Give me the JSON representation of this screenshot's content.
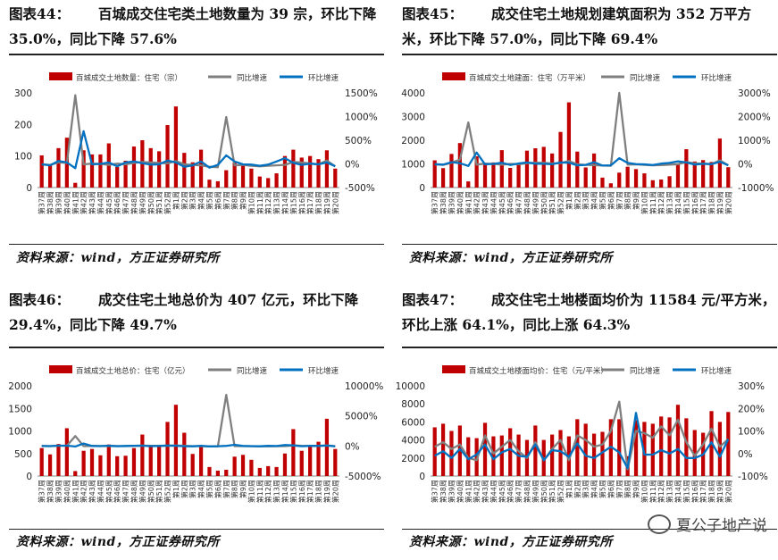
{
  "panels": [
    {
      "label": "图表44：",
      "title": "百城成交住宅类土地数量为 39 宗，环比下降 35.0%，同比下降 57.6%",
      "source": "资料来源：wind，方正证券研究所"
    },
    {
      "label": "图表45：",
      "title": "成交住宅土地规划建筑面积为 352 万平方米，环比下降 57.0%，同比下降 69.4%",
      "source": "资料来源：wind，方正证券研究所"
    },
    {
      "label": "图表46：",
      "title": "成交住宅土地总价为 407 亿元，环比下降 29.4%，同比下降 49.7%",
      "source": "资料来源：wind，方正证券研究所"
    },
    {
      "label": "图表47：",
      "title": "成交住宅土地楼面均价为 11584 元/平方米，环比上涨 64.1%，同比上涨 64.3%",
      "source": "资料来源：wind，方正证券研究所"
    }
  ],
  "watermark": "夏公子地产说",
  "colors": {
    "bar": "#c00000",
    "yoy": "#7f7f7f",
    "mom": "#0070c0"
  },
  "chart_data": [
    {
      "type": "bar",
      "legend": [
        "百城成交土地数量：住宅（宗）",
        "同比增速",
        "环比增速"
      ],
      "categories": [
        "第37周",
        "第38周",
        "第39周",
        "第40周",
        "第41周",
        "第42周",
        "第43周",
        "第44周",
        "第45周",
        "第46周",
        "第47周",
        "第48周",
        "第49周",
        "第50周",
        "第51周",
        "第52周",
        "第1周",
        "第2周",
        "第3周",
        "第4周",
        "第5周",
        "第6周",
        "第7周",
        "第8周",
        "第9周",
        "第10周",
        "第11周",
        "第12周",
        "第13周",
        "第14周",
        "第15周",
        "第16周",
        "第17周",
        "第18周",
        "第19周",
        "第20周"
      ],
      "series": [
        {
          "name": "百城成交土地数量：住宅（宗）",
          "axis": "left",
          "values": [
            102,
            75,
            125,
            158,
            15,
            118,
            105,
            105,
            140,
            65,
            85,
            130,
            150,
            125,
            115,
            198,
            257,
            110,
            80,
            120,
            25,
            20,
            55,
            80,
            70,
            60,
            35,
            30,
            45,
            100,
            120,
            95,
            100,
            90,
            118,
            60
          ]
        },
        {
          "name": "同比增速",
          "axis": "right",
          "values": [
            -10,
            -20,
            30,
            20,
            1450,
            -10,
            5,
            0,
            -20,
            5,
            -10,
            20,
            40,
            30,
            20,
            10,
            60,
            -10,
            -20,
            -30,
            -60,
            -70,
            990,
            -30,
            -20,
            -40,
            -50,
            -40,
            -30,
            -20,
            40,
            30,
            10,
            -10,
            70,
            -50
          ]
        },
        {
          "name": "环比增速",
          "axis": "right",
          "values": [
            -10,
            -30,
            60,
            30,
            -90,
            690,
            -10,
            0,
            30,
            -50,
            30,
            50,
            15,
            -15,
            -10,
            70,
            30,
            -60,
            -30,
            50,
            -80,
            -20,
            180,
            50,
            -10,
            -15,
            -40,
            -15,
            50,
            120,
            20,
            -20,
            5,
            -10,
            30,
            -50
          ]
        }
      ],
      "ylim_left": [
        0,
        300
      ],
      "yticks_left": [
        0,
        100,
        200,
        300
      ],
      "ylim_right": [
        -500,
        1500
      ],
      "yticks_right": [
        "-500%",
        "0%",
        "500%",
        "1000%",
        "1500%"
      ]
    },
    {
      "type": "bar",
      "legend": [
        "百城成交土地建面：住宅（万平米）",
        "同比增速",
        "环比增速"
      ],
      "categories": [
        "第37周",
        "第38周",
        "第39周",
        "第40周",
        "第41周",
        "第42周",
        "第43周",
        "第44周",
        "第45周",
        "第46周",
        "第47周",
        "第48周",
        "第49周",
        "第50周",
        "第51周",
        "第52周",
        "第1周",
        "第2周",
        "第3周",
        "第4周",
        "第5周",
        "第6周",
        "第7周",
        "第8周",
        "第9周",
        "第10周",
        "第11周",
        "第12周",
        "第13周",
        "第14周",
        "第15周",
        "第16周",
        "第17周",
        "第18周",
        "第19周",
        "第20周"
      ],
      "series": [
        {
          "name": "百城成交土地建面：住宅（万平米）",
          "axis": "left",
          "values": [
            1150,
            820,
            1420,
            1880,
            260,
            1320,
            1020,
            1060,
            1580,
            830,
            990,
            1560,
            1660,
            1720,
            1440,
            2350,
            3600,
            1520,
            850,
            1440,
            420,
            180,
            630,
            880,
            780,
            600,
            310,
            340,
            480,
            1020,
            1620,
            1100,
            1160,
            1080,
            2070,
            860
          ]
        },
        {
          "name": "同比增速",
          "axis": "right",
          "values": [
            -20,
            -40,
            50,
            180,
            1750,
            -30,
            10,
            0,
            -30,
            0,
            -10,
            30,
            50,
            40,
            20,
            30,
            120,
            -20,
            -40,
            -50,
            -70,
            -80,
            3000,
            -30,
            -20,
            -40,
            -60,
            -50,
            -30,
            -10,
            80,
            20,
            10,
            -10,
            150,
            -60
          ]
        },
        {
          "name": "环比增速",
          "axis": "right",
          "values": [
            -10,
            -30,
            70,
            30,
            -85,
            480,
            -20,
            0,
            50,
            -45,
            20,
            60,
            5,
            5,
            -15,
            60,
            50,
            -60,
            -40,
            70,
            -70,
            -60,
            240,
            40,
            -10,
            -20,
            -50,
            10,
            40,
            110,
            60,
            -30,
            5,
            -10,
            90,
            -60
          ]
        }
      ],
      "ylim_left": [
        0,
        4000
      ],
      "yticks_left": [
        0,
        1000,
        2000,
        3000,
        4000
      ],
      "ylim_right": [
        -1000,
        3000
      ],
      "yticks_right": [
        "-1000%",
        "0%",
        "1000%",
        "2000%",
        "3000%"
      ]
    },
    {
      "type": "bar",
      "legend": [
        "百城成交土地总价：住宅（亿元）",
        "同比增速",
        "环比增速"
      ],
      "categories": [
        "第37周",
        "第38周",
        "第39周",
        "第40周",
        "第41周",
        "第42周",
        "第43周",
        "第44周",
        "第45周",
        "第46周",
        "第47周",
        "第48周",
        "第49周",
        "第50周",
        "第51周",
        "第52周",
        "第1周",
        "第2周",
        "第3周",
        "第4周",
        "第5周",
        "第6周",
        "第7周",
        "第8周",
        "第9周",
        "第10周",
        "第11周",
        "第12周",
        "第13周",
        "第14周",
        "第15周",
        "第16周",
        "第17周",
        "第18周",
        "第19周",
        "第20周"
      ],
      "series": [
        {
          "name": "百城成交土地总价：住宅（亿元）",
          "axis": "left",
          "values": [
            620,
            480,
            710,
            1060,
            110,
            560,
            600,
            460,
            700,
            440,
            450,
            620,
            920,
            680,
            660,
            1200,
            1580,
            960,
            490,
            680,
            200,
            120,
            140,
            430,
            470,
            360,
            180,
            220,
            200,
            500,
            1040,
            560,
            650,
            760,
            1270,
            600
          ]
        },
        {
          "name": "同比增速",
          "axis": "right",
          "values": [
            0,
            -20,
            30,
            50,
            1650,
            -20,
            10,
            -10,
            -20,
            -10,
            -20,
            20,
            60,
            30,
            20,
            40,
            80,
            20,
            -30,
            -40,
            -60,
            -80,
            8500,
            -30,
            -20,
            -40,
            -60,
            -50,
            -40,
            -20,
            100,
            20,
            10,
            -10,
            110,
            -50
          ]
        },
        {
          "name": "环比增速",
          "axis": "right",
          "values": [
            -10,
            -20,
            50,
            50,
            -90,
            410,
            10,
            -25,
            50,
            -40,
            0,
            40,
            50,
            -30,
            0,
            80,
            30,
            -40,
            -50,
            40,
            -70,
            -40,
            20,
            200,
            10,
            -25,
            -50,
            20,
            -10,
            150,
            100,
            -45,
            15,
            20,
            70,
            -50
          ]
        }
      ],
      "ylim_left": [
        0,
        2000
      ],
      "yticks_left": [
        0,
        500,
        1000,
        1500,
        2000
      ],
      "ylim_right": [
        -5000,
        10000
      ],
      "yticks_right": [
        "-5000%",
        "0%",
        "5000%",
        "10000%"
      ]
    },
    {
      "type": "bar",
      "legend": [
        "百城成交土地楼面均价：住宅（元/平米）",
        "同比增速",
        "环比增速"
      ],
      "categories": [
        "第37周",
        "第38周",
        "第39周",
        "第40周",
        "第41周",
        "第42周",
        "第43周",
        "第44周",
        "第45周",
        "第46周",
        "第47周",
        "第48周",
        "第49周",
        "第50周",
        "第51周",
        "第52周",
        "第1周",
        "第2周",
        "第3周",
        "第4周",
        "第5周",
        "第6周",
        "第7周",
        "第8周",
        "第9周",
        "第10周",
        "第11周",
        "第12周",
        "第13周",
        "第14周",
        "第15周",
        "第16周",
        "第17周",
        "第18周",
        "第19周",
        "第20周"
      ],
      "series": [
        {
          "name": "百城成交土地楼面均价：住宅（元/平米）",
          "axis": "left",
          "values": [
            5400,
            5800,
            5000,
            5600,
            4300,
            4200,
            5900,
            4400,
            4500,
            5300,
            4600,
            4000,
            5600,
            4000,
            4600,
            5100,
            4400,
            6300,
            5800,
            4700,
            4900,
            6300,
            6300,
            2200,
            6200,
            6000,
            5800,
            6600,
            6500,
            7900,
            6400,
            5100,
            4800,
            7200,
            6000,
            7100
          ]
        },
        {
          "name": "同比增速",
          "axis": "right",
          "values": [
            30,
            50,
            20,
            40,
            -20,
            -30,
            80,
            0,
            30,
            60,
            10,
            -20,
            50,
            -30,
            20,
            60,
            -30,
            80,
            60,
            30,
            40,
            100,
            230,
            -70,
            100,
            90,
            70,
            120,
            80,
            150,
            50,
            -10,
            40,
            110,
            30,
            64
          ]
        },
        {
          "name": "环比增速",
          "axis": "right",
          "values": [
            -10,
            10,
            -20,
            20,
            -25,
            -5,
            40,
            -25,
            5,
            20,
            -10,
            -15,
            40,
            -30,
            15,
            10,
            -15,
            45,
            -10,
            -20,
            5,
            30,
            5,
            -65,
            180,
            -5,
            -5,
            15,
            0,
            20,
            -20,
            -20,
            -5,
            50,
            -15,
            64
          ]
        }
      ],
      "ylim_left": [
        0,
        10000
      ],
      "yticks_left": [
        0,
        2000,
        4000,
        6000,
        8000,
        10000
      ],
      "ylim_right": [
        -100,
        300
      ],
      "yticks_right": [
        "-100%",
        "0%",
        "100%",
        "200%",
        "300%"
      ]
    }
  ]
}
